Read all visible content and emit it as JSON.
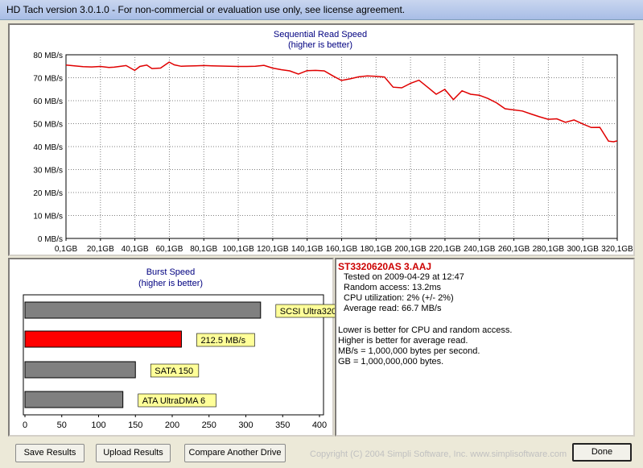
{
  "window": {
    "title": "HD Tach version 3.0.1.0  - For non-commercial or evaluation use only, see license agreement."
  },
  "read_chart": {
    "title": "Sequential Read Speed",
    "subtitle": "(higher is better)"
  },
  "burst_chart": {
    "title": "Burst Speed",
    "subtitle": "(higher is better)"
  },
  "drive": {
    "name": "ST3320620AS 3.AAJ",
    "lines": [
      "Tested on 2009-04-29 at 12:47",
      "Random access: 13.2ms",
      "CPU utilization: 2% (+/- 2%)",
      "Average read: 66.7 MB/s"
    ],
    "notes": [
      "Lower is better for CPU and random access.",
      "Higher is better for average read.",
      "MB/s = 1,000,000 bytes per second.",
      "GB = 1,000,000,000 bytes."
    ]
  },
  "buttons": {
    "save": "Save Results",
    "upload": "Upload Results",
    "compare": "Compare Another Drive",
    "done": "Done"
  },
  "copyright": "Copyright (C) 2004 Simpli Software, Inc. www.simplisoftware.com",
  "colors": {
    "line": "#e00000",
    "bar_gray": "#808080",
    "bar_red": "#ff0000",
    "label_bg": "#ffff99",
    "title_blue": "#000080"
  },
  "chart_data": [
    {
      "type": "line",
      "title": "Sequential Read Speed",
      "subtitle": "(higher is better)",
      "y_tick_labels": [
        "0 MB/s",
        "10 MB/s",
        "20 MB/s",
        "30 MB/s",
        "40 MB/s",
        "50 MB/s",
        "60 MB/s",
        "70 MB/s",
        "80 MB/s"
      ],
      "x_tick_labels": [
        "0,1GB",
        "20,1GB",
        "40,1GB",
        "60,1GB",
        "80,1GB",
        "100,1GB",
        "120,1GB",
        "140,1GB",
        "160,1GB",
        "180,1GB",
        "200,1GB",
        "220,1GB",
        "240,1GB",
        "260,1GB",
        "280,1GB",
        "300,1GB",
        "320,1GB"
      ],
      "xlim": [
        0.1,
        320.1
      ],
      "ylim": [
        0,
        80
      ],
      "grid": true,
      "x": [
        0.1,
        5,
        10,
        15,
        20,
        25,
        28,
        32,
        35,
        40,
        43,
        47,
        50,
        55,
        60,
        63,
        67,
        70,
        75,
        80,
        85,
        90,
        95,
        100,
        105,
        110,
        115,
        120,
        125,
        130,
        135,
        140,
        145,
        150,
        155,
        160,
        165,
        170,
        175,
        180,
        185,
        190,
        195,
        200,
        205,
        210,
        215,
        220,
        225,
        230,
        235,
        240,
        245,
        250,
        255,
        260,
        265,
        270,
        275,
        280,
        285,
        290,
        295,
        300,
        305,
        310,
        315,
        318,
        320.1
      ],
      "y": [
        75.5,
        75.2,
        74.8,
        74.7,
        74.9,
        74.5,
        74.6,
        75.0,
        75.3,
        73.2,
        74.9,
        75.5,
        74.0,
        74.2,
        76.8,
        75.6,
        75.0,
        75.1,
        75.2,
        75.3,
        75.2,
        75.1,
        75.0,
        74.9,
        74.9,
        75.0,
        75.4,
        74.2,
        73.5,
        73.0,
        71.6,
        73.1,
        73.2,
        73.0,
        70.8,
        68.8,
        69.5,
        70.4,
        70.8,
        70.6,
        70.3,
        65.9,
        65.6,
        67.5,
        68.9,
        65.9,
        62.8,
        64.9,
        60.5,
        64.3,
        62.8,
        62.4,
        61.0,
        59.1,
        56.5,
        56.0,
        55.5,
        54.2,
        53.0,
        51.9,
        52.1,
        50.6,
        51.6,
        49.9,
        48.3,
        48.4,
        42.4,
        42.1,
        42.5
      ]
    },
    {
      "type": "bar",
      "title": "Burst Speed",
      "subtitle": "(higher is better)",
      "orientation": "horizontal",
      "categories": [
        "SCSI Ultra320",
        "212.5 MB/s",
        "SATA 150",
        "ATA UltraDMA 6"
      ],
      "values": [
        320,
        212.5,
        150,
        133
      ],
      "bar_colors": [
        "#808080",
        "#ff0000",
        "#808080",
        "#808080"
      ],
      "x_tick_labels": [
        "0",
        "50",
        "100",
        "150",
        "200",
        "250",
        "300",
        "350",
        "400"
      ],
      "xlim": [
        0,
        400
      ]
    }
  ]
}
